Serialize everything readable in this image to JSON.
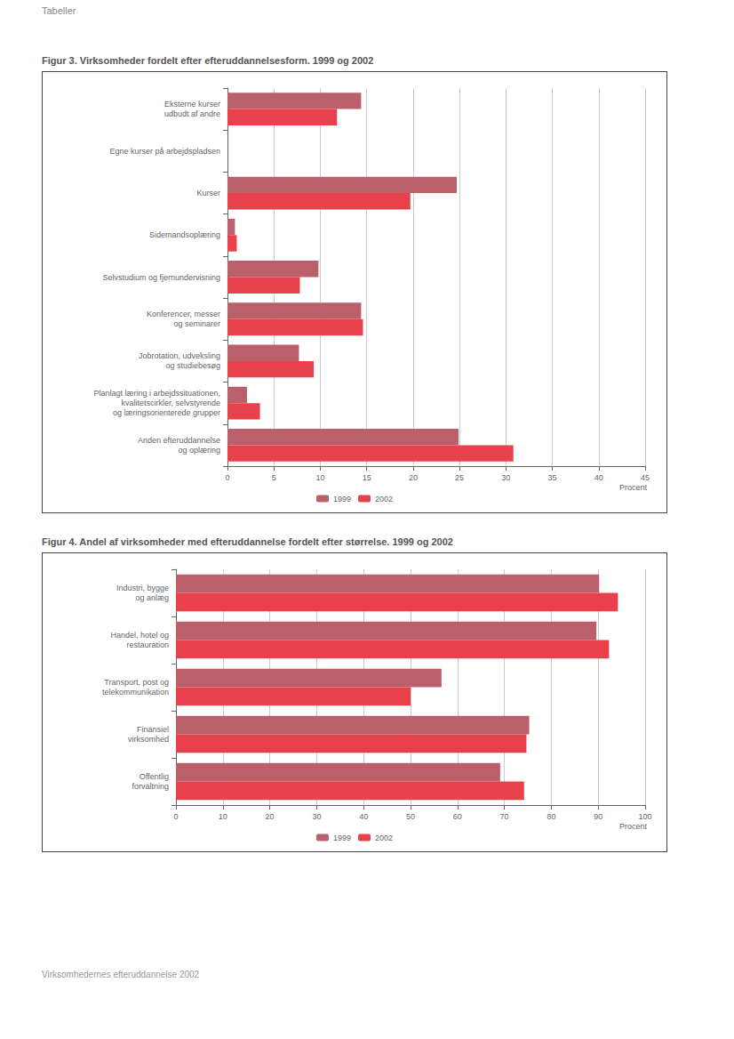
{
  "header": "Tabeller",
  "footer": "Virksomhedernes efteruddannelse 2002",
  "chart_data": [
    {
      "type": "bar",
      "orientation": "horizontal",
      "grid": true,
      "legend": "bottom",
      "title": "Figur 3. Virksomheder fordelt efter efteruddannelsesform. 1999 og 2002",
      "x_label": "Procent",
      "categories": [
        "Eksterne kurser\nudbudt af andre",
        "Egne kurser på arbejdspladsen",
        "Kurser",
        "Sidemandsoplæring",
        "Selvstudium og fjernundervisning",
        "Konferencer, messer\nog seminarer",
        "Jobrotation, udveksling\nog studiebesøg",
        "Planlagt læring i arbejdssituationen,\nkvalitetscirkler, selvstyrende\nog læringsorienterede grupper",
        "Anden efteruddannelse\nog oplæring"
      ],
      "series": [
        {
          "name": "1999",
          "color": "#b9606b",
          "values": [
            14.4,
            0,
            24.7,
            0.8,
            9.8,
            14.4,
            7.7,
            2.1,
            24.9
          ]
        },
        {
          "name": "2002",
          "color": "#e8414c",
          "values": [
            11.8,
            0,
            19.7,
            1.0,
            7.8,
            14.6,
            9.3,
            3.5,
            30.8
          ]
        }
      ],
      "xlim": [
        0,
        45
      ],
      "xticks": [
        0,
        5,
        10,
        15,
        20,
        25,
        30,
        35,
        40,
        45
      ]
    },
    {
      "type": "bar",
      "orientation": "horizontal",
      "grid": true,
      "legend": "bottom",
      "title": "Figur 4. Andel af virksomheder med efteruddannelse fordelt efter størrelse. 1999 og 2002",
      "x_label": "Procent",
      "categories": [
        "Industri, bygge\nog anlæg",
        "Handel, hotel og\nrestauration",
        "Transport, post og\ntelekommunikation",
        "Finansiel\nvirksomhed",
        "Offentlig\nforvaltning"
      ],
      "series": [
        {
          "name": "1999",
          "color": "#b9606b",
          "values": [
            90.2,
            89.6,
            56.6,
            75.3,
            69.1
          ]
        },
        {
          "name": "2002",
          "color": "#e8414c",
          "values": [
            94.2,
            92.3,
            50.0,
            74.7,
            74.2
          ]
        }
      ],
      "xlim": [
        0,
        100
      ],
      "xticks": [
        0,
        10,
        20,
        30,
        40,
        50,
        60,
        70,
        80,
        90,
        100
      ]
    }
  ]
}
